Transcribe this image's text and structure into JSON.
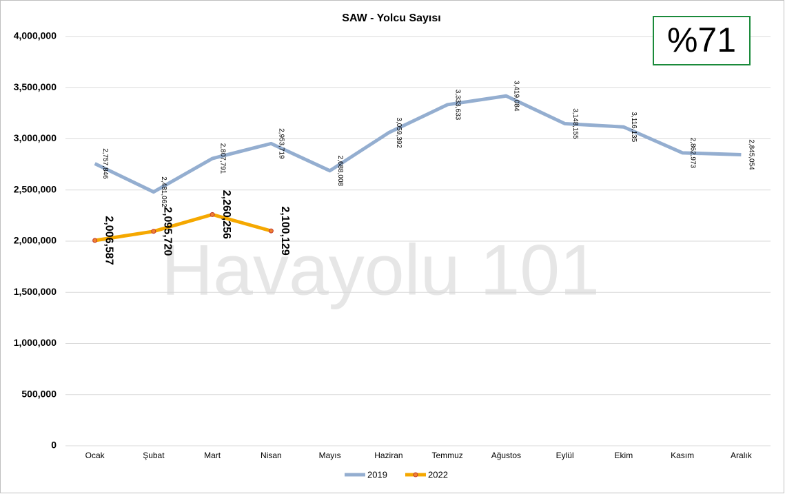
{
  "chart_data": {
    "type": "line",
    "title": "SAW - Yolcu Sayısı",
    "annotations": [
      "%71",
      "Havayolu 101"
    ],
    "categories": [
      "Ocak",
      "Şubat",
      "Mart",
      "Nisan",
      "Mayıs",
      "Haziran",
      "Temmuz",
      "Ağustos",
      "Eylül",
      "Ekim",
      "Kasım",
      "Aralık"
    ],
    "series": [
      {
        "name": "2019",
        "color": "#94aed0",
        "marker": false,
        "values": [
          2757846,
          2481062,
          2807791,
          2953719,
          2688008,
          3059392,
          3333633,
          3419084,
          3148155,
          3116135,
          2862973,
          2845054
        ],
        "value_labels": [
          "2,757,846",
          "2,481,062",
          "2,807,791",
          "2,953,719",
          "2,688,008",
          "3,059,392",
          "3,333,633",
          "3,419,084",
          "3,148,155",
          "3,116,135",
          "2,862,973",
          "2,845,054"
        ]
      },
      {
        "name": "2022",
        "color": "#f5a800",
        "marker": true,
        "values": [
          2006587,
          2095720,
          2260256,
          2100129,
          null,
          null,
          null,
          null,
          null,
          null,
          null,
          null
        ],
        "value_labels": [
          "2,006,587",
          "2,095,720",
          "2,260,256",
          "2,100,129",
          null,
          null,
          null,
          null,
          null,
          null,
          null,
          null
        ]
      }
    ],
    "ylim": [
      0,
      4000000
    ],
    "yticks": [
      0,
      {
        "value": 500000,
        "label": "500,000"
      },
      {
        "value": 1000000,
        "label": "1,000,000"
      },
      {
        "value": 1500000,
        "label": "1,500,000"
      },
      {
        "value": 2000000,
        "label": "2,000,000"
      },
      {
        "value": 2500000,
        "label": "2,500,000"
      },
      {
        "value": 3000000,
        "label": "3,000,000"
      },
      {
        "value": 3500000,
        "label": "3,500,000"
      },
      {
        "value": 4000000,
        "label": "4,000,000"
      }
    ],
    "grid": true,
    "legend": "bottom"
  }
}
